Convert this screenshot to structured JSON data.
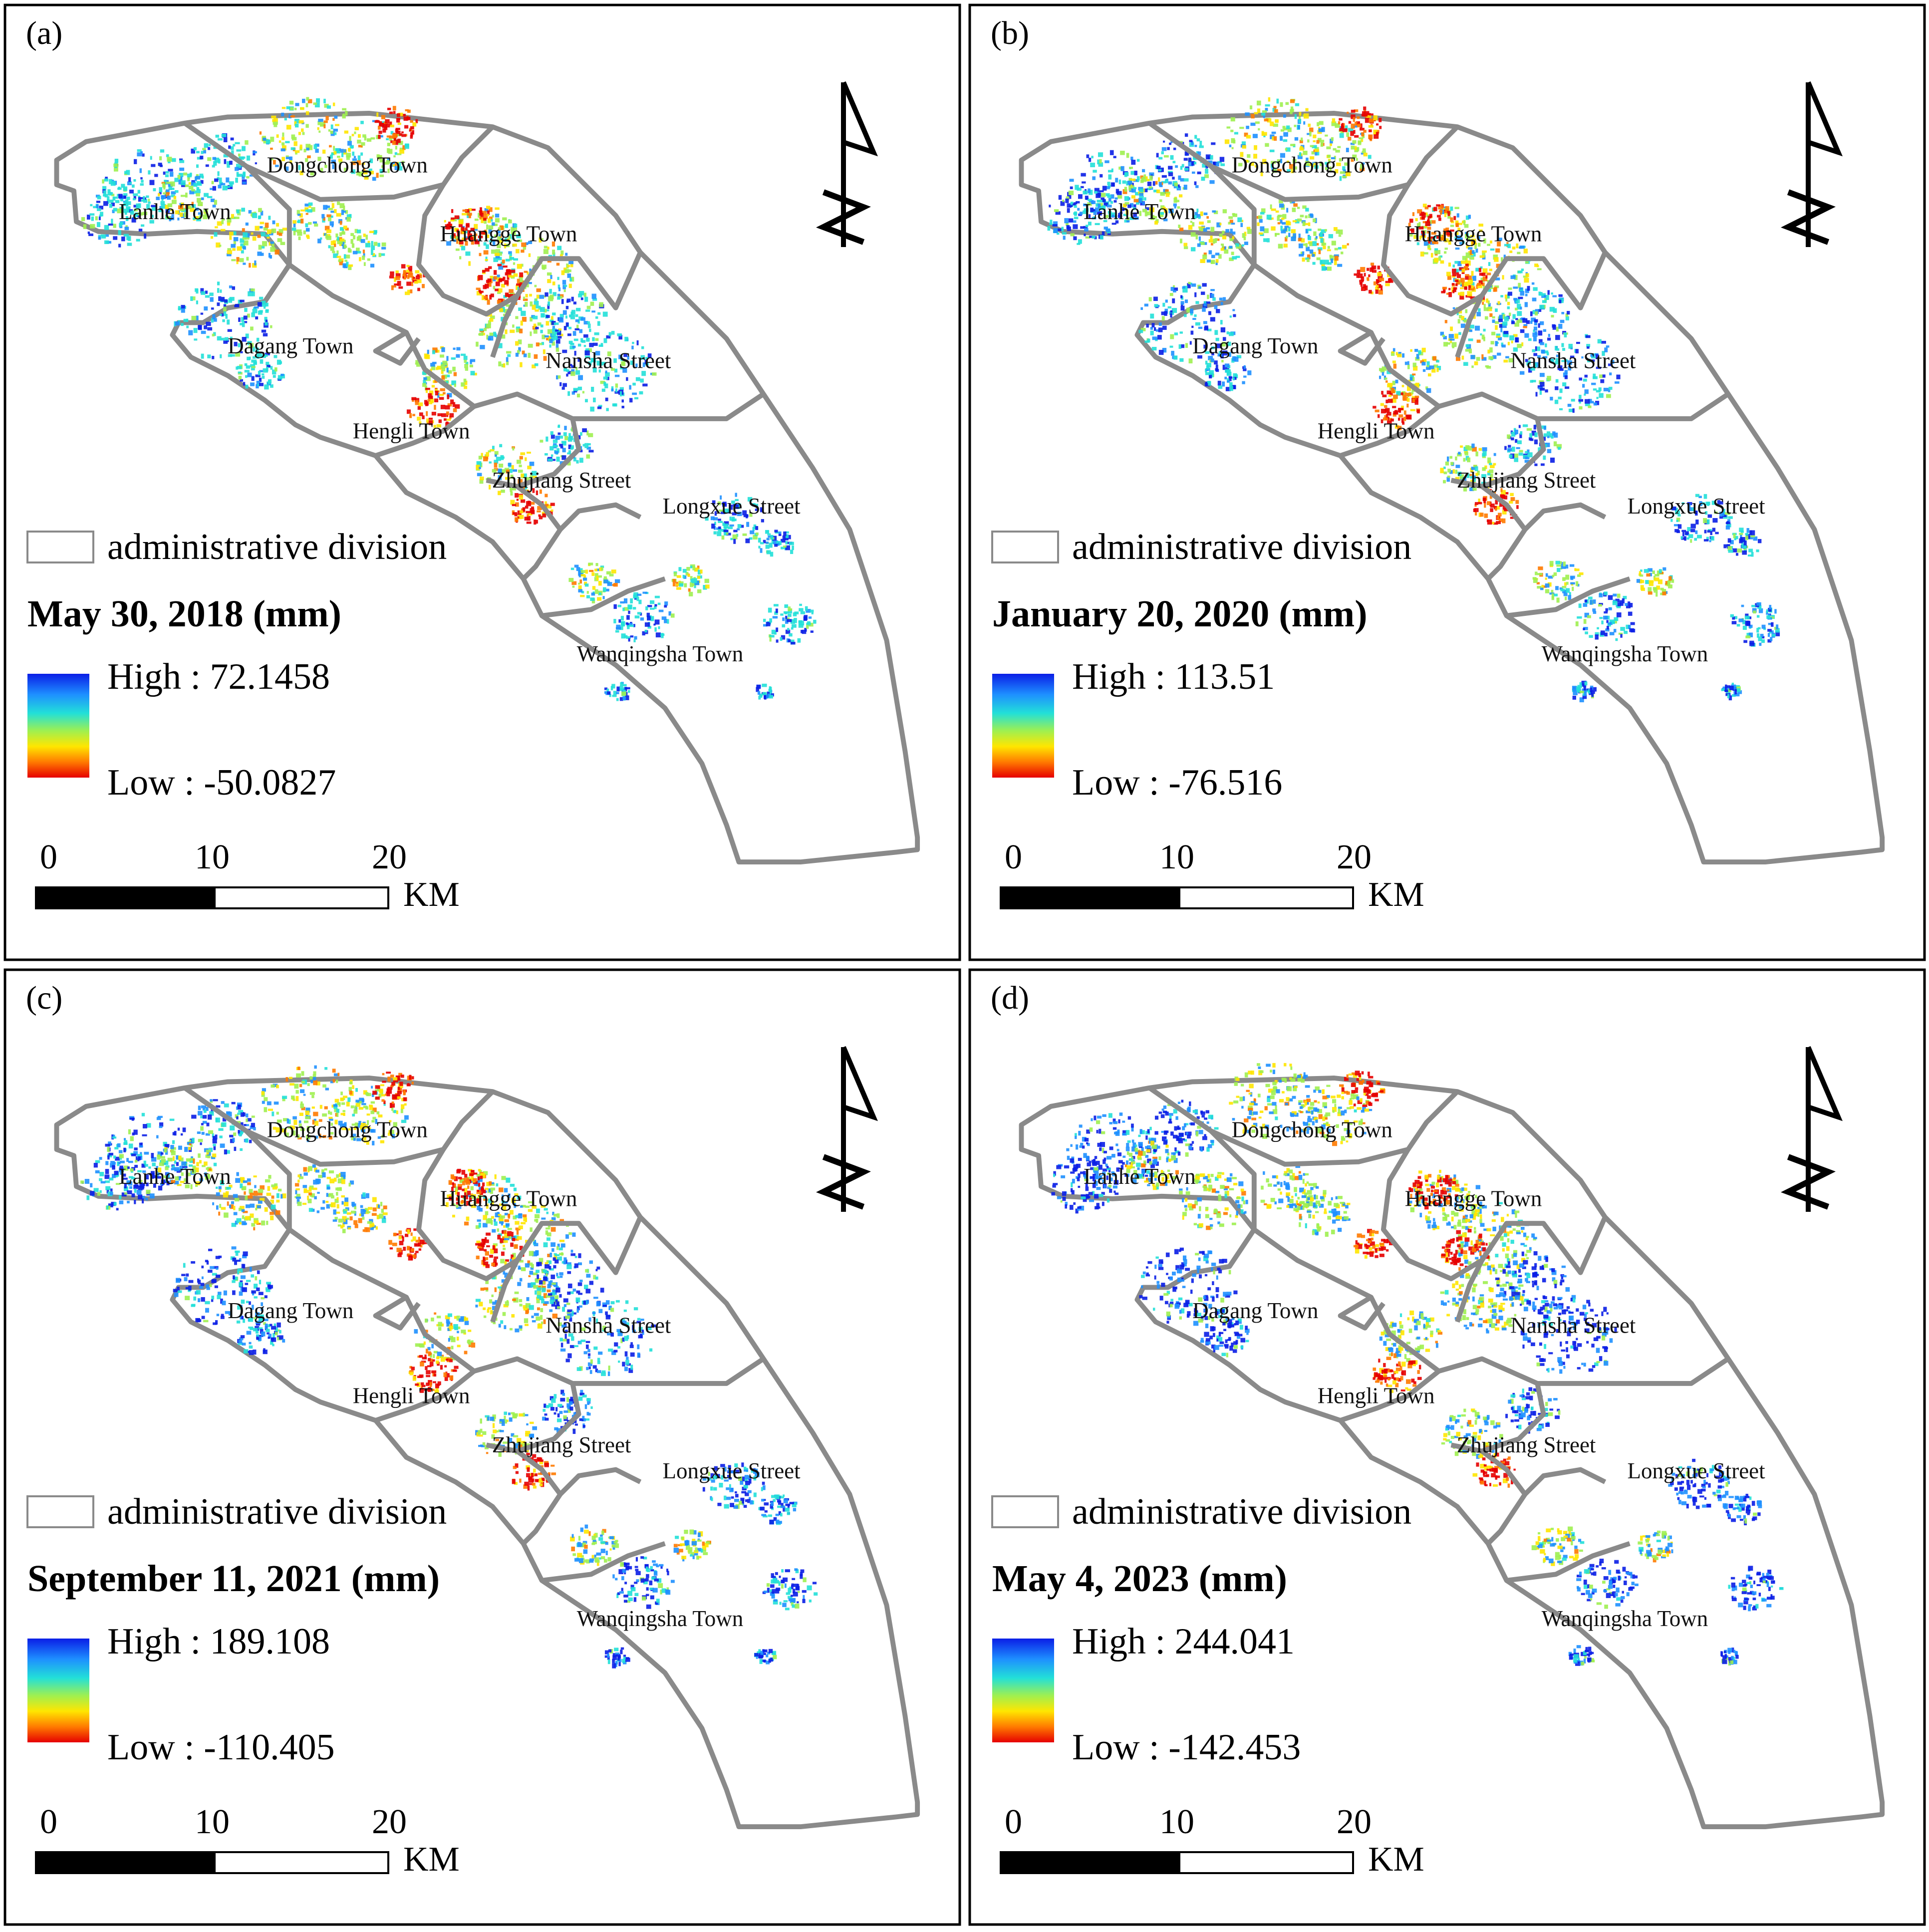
{
  "panels": [
    {
      "letter": "(a)",
      "date_title": "May 30, 2018 (mm)",
      "high_label": "High : 72.1458",
      "low_label": "Low : -50.0827",
      "high": 72.1458,
      "low": -50.0827,
      "blue_level": 0.45
    },
    {
      "letter": "(b)",
      "date_title": "January 20, 2020 (mm)",
      "high_label": "High : 113.51",
      "low_label": "Low : -76.516",
      "high": 113.51,
      "low": -76.516,
      "blue_level": 0.62
    },
    {
      "letter": "(c)",
      "date_title": "September 11, 2021 (mm)",
      "high_label": "High : 189.108",
      "low_label": "Low : -110.405",
      "high": 189.108,
      "low": -110.405,
      "blue_level": 0.78
    },
    {
      "letter": "(d)",
      "date_title": "May 4, 2023 (mm)",
      "high_label": "High : 244.041",
      "low_label": "Low : -142.453",
      "high": 244.041,
      "low": -142.453,
      "blue_level": 0.9
    }
  ],
  "districts": [
    "Dongchong Town",
    "Lanhe Town",
    "Huangge Town",
    "Dagang Town",
    "Nansha Street",
    "Hengli Town",
    "Zhujiang Street",
    "Longxue Street",
    "Wanqingsha Town"
  ],
  "legend": {
    "boundary_label": "administrative division",
    "ramp_colors": [
      "#0a1ee6",
      "#1e90ff",
      "#22e0d8",
      "#9ff050",
      "#ffe600",
      "#ff7a00",
      "#e60000"
    ]
  },
  "scale_bar": {
    "ticks": [
      "0",
      "10",
      "20"
    ],
    "unit": "KM"
  },
  "north_arrow": {
    "icon": "north-arrow-icon"
  }
}
